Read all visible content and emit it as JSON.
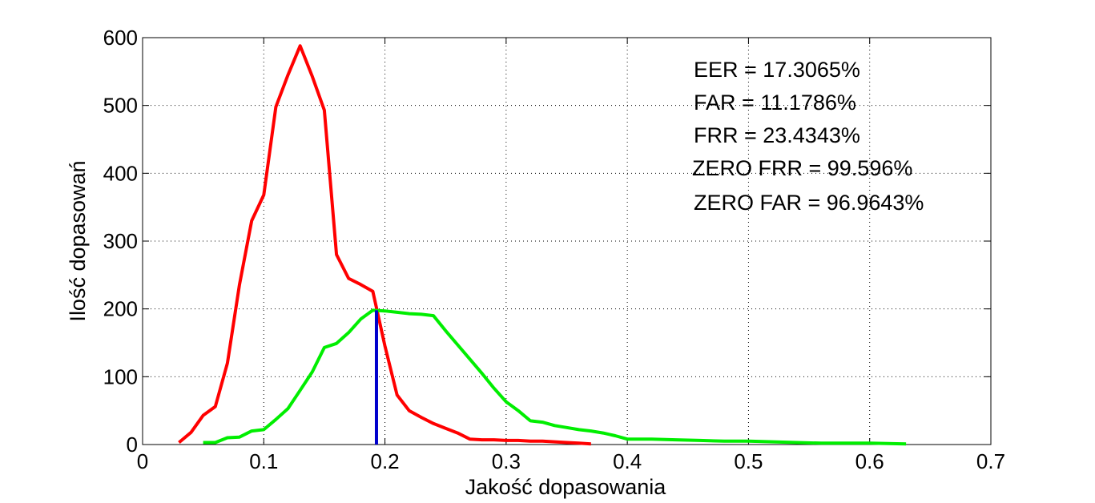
{
  "chart_data": {
    "type": "line",
    "title": "",
    "xlabel": "Jakość dopasowania",
    "ylabel": "Ilość dopasowań",
    "xlim": [
      0,
      0.7
    ],
    "ylim": [
      0,
      600
    ],
    "xticks": [
      0,
      0.1,
      0.2,
      0.3,
      0.4,
      0.5,
      0.6,
      0.7
    ],
    "xtick_labels": [
      "0",
      "0.1",
      "0.2",
      "0.3",
      "0.4",
      "0.5",
      "0.6",
      "0.7"
    ],
    "yticks": [
      0,
      100,
      200,
      300,
      400,
      500,
      600
    ],
    "ytick_labels": [
      "0",
      "100",
      "200",
      "300",
      "400",
      "500",
      "600"
    ],
    "grid": true,
    "series": [
      {
        "color": "#ff0000",
        "x": [
          0.03,
          0.04,
          0.05,
          0.06,
          0.07,
          0.08,
          0.09,
          0.1,
          0.11,
          0.12,
          0.13,
          0.14,
          0.15,
          0.16,
          0.17,
          0.18,
          0.19,
          0.2,
          0.21,
          0.22,
          0.23,
          0.24,
          0.25,
          0.26,
          0.27,
          0.28,
          0.29,
          0.3,
          0.31,
          0.32,
          0.33,
          0.34,
          0.35,
          0.36,
          0.37
        ],
        "y": [
          3,
          18,
          43,
          56,
          120,
          236,
          330,
          368,
          498,
          545,
          588,
          543,
          493,
          280,
          245,
          236,
          226,
          145,
          73,
          50,
          40,
          31,
          24,
          17,
          8,
          7,
          7,
          6,
          6,
          5,
          5,
          4,
          3,
          2,
          1
        ]
      },
      {
        "color": "#00ee00",
        "x": [
          0.05,
          0.06,
          0.07,
          0.08,
          0.09,
          0.1,
          0.11,
          0.12,
          0.13,
          0.14,
          0.15,
          0.16,
          0.17,
          0.18,
          0.19,
          0.2,
          0.21,
          0.22,
          0.23,
          0.24,
          0.25,
          0.26,
          0.27,
          0.28,
          0.29,
          0.3,
          0.31,
          0.32,
          0.33,
          0.34,
          0.35,
          0.36,
          0.37,
          0.38,
          0.39,
          0.4,
          0.42,
          0.44,
          0.46,
          0.48,
          0.5,
          0.52,
          0.54,
          0.56,
          0.58,
          0.6,
          0.63
        ],
        "y": [
          3,
          3,
          10,
          11,
          20,
          22,
          37,
          53,
          80,
          107,
          143,
          149,
          165,
          185,
          198,
          197,
          195,
          193,
          192,
          190,
          168,
          147,
          126,
          105,
          83,
          63,
          50,
          35,
          33,
          28,
          25,
          22,
          20,
          17,
          13,
          8,
          8,
          7,
          6,
          5,
          5,
          4,
          3,
          2,
          2,
          2,
          1
        ]
      }
    ],
    "vline": {
      "x": 0.193,
      "y_max": 198,
      "color": "#0000cc"
    },
    "annotations": [
      "EER = 17.3065%",
      "FAR = 11.1786%",
      "FRR = 23.4343%",
      "ZERO FRR = 99.596%",
      "ZERO FAR = 96.9643%"
    ]
  }
}
